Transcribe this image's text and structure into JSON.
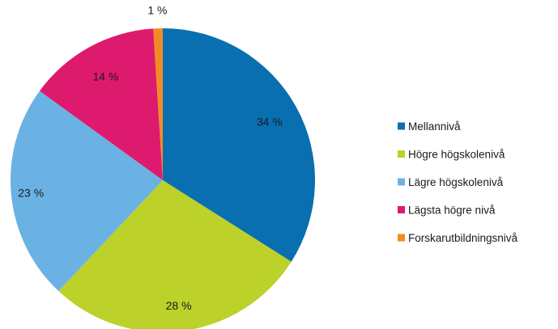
{
  "chart_data": {
    "type": "pie",
    "title": "",
    "categories": [
      "Mellannivå",
      "Högre högskolenivå",
      "Lägre högskolenivå",
      "Lägsta högre nivå",
      "Forskarutbildningsnivå"
    ],
    "values": [
      34,
      28,
      23,
      14,
      1
    ],
    "data_labels": [
      "34 %",
      "28 %",
      "23 %",
      "14 %",
      "1 %"
    ],
    "colors": [
      "#0a6fb0",
      "#bcd12a",
      "#6ab2e4",
      "#de1a6e",
      "#f28c22"
    ],
    "start_angle_deg": 0,
    "direction": "clockwise",
    "legend_position": "right"
  }
}
